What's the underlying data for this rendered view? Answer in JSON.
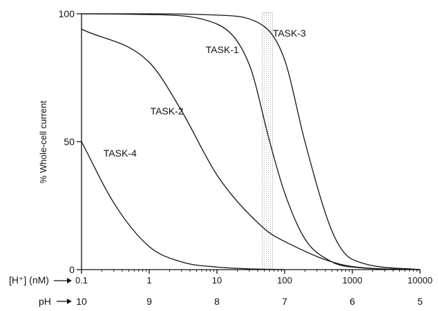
{
  "chart_data": {
    "type": "line",
    "title": "",
    "ylabel": "% Whole-cell current",
    "ylim": [
      0,
      100
    ],
    "yticks": [
      "0",
      "50",
      "100"
    ],
    "x_scale": "log",
    "xlim_nM": [
      0.1,
      10000
    ],
    "xlabel_primary": "[H⁺] (nM)",
    "xticks": [
      "0.1",
      "1",
      "10",
      "100",
      "1000",
      "10000"
    ],
    "xlabel_secondary": "pH",
    "ph_ticks": [
      "10",
      "9",
      "8",
      "7",
      "6",
      "5"
    ],
    "physiological_band_nM": [
      47,
      66
    ],
    "series": [
      {
        "name": "TASK-3",
        "x": [
          0.1,
          1,
          10,
          50,
          100,
          200,
          500,
          1000,
          10000
        ],
        "values": [
          100,
          100,
          99.5,
          95,
          82,
          50,
          15,
          4,
          0
        ]
      },
      {
        "name": "TASK-1",
        "x": [
          0.1,
          1,
          10,
          30,
          60,
          100,
          200,
          500,
          1000,
          10000
        ],
        "values": [
          100,
          99.7,
          96,
          80,
          50,
          30,
          12,
          3,
          1,
          0
        ]
      },
      {
        "name": "TASK-2",
        "x": [
          0.1,
          1,
          3,
          10,
          50,
          100,
          1000,
          10000
        ],
        "values": [
          94,
          81,
          62,
          37,
          16,
          11,
          1.2,
          0
        ]
      },
      {
        "name": "TASK-4",
        "x": [
          0.1,
          0.3,
          1,
          3,
          10,
          30,
          100
        ],
        "values": [
          50,
          26,
          9,
          3,
          1,
          0.3,
          0
        ]
      }
    ]
  }
}
